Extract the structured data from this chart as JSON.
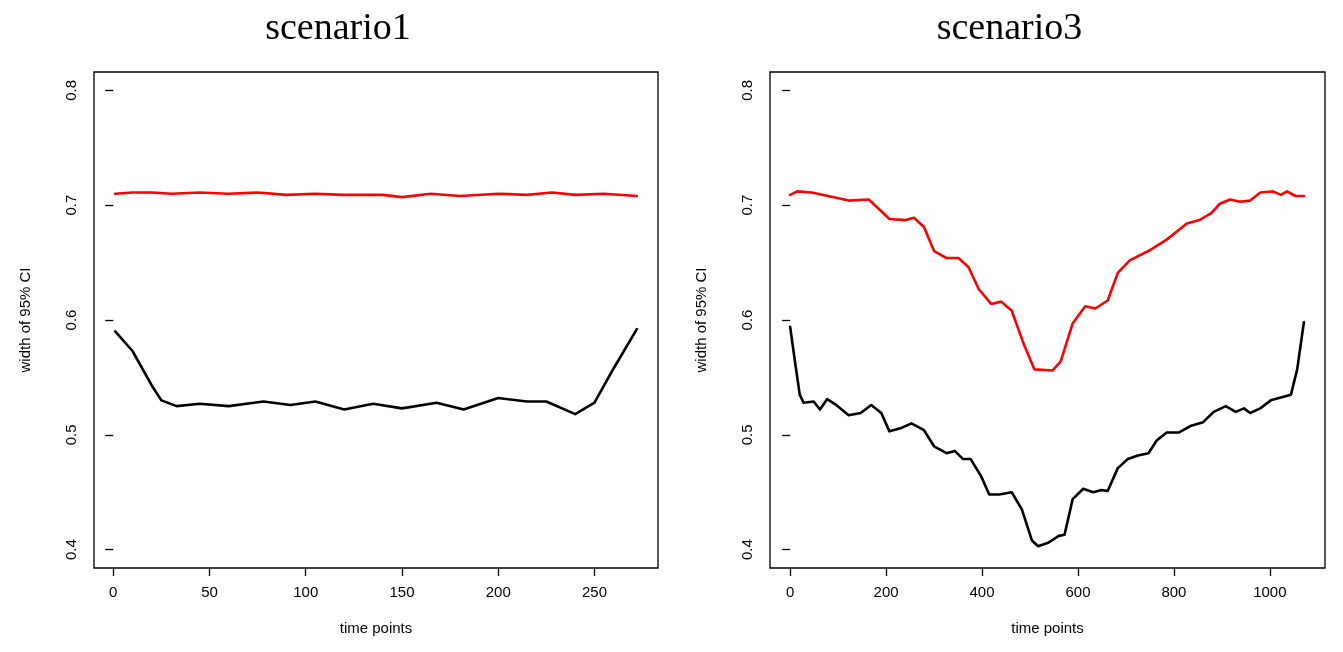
{
  "chart_data": [
    {
      "type": "line",
      "title": "scenario1",
      "xlabel": "time points",
      "ylabel": "width of 95% CI",
      "xlim": [
        -10,
        283
      ],
      "ylim": [
        0.384,
        0.816
      ],
      "xticks": [
        0,
        50,
        100,
        150,
        200,
        250
      ],
      "yticks": [
        0.4,
        0.5,
        0.6,
        0.7,
        0.8
      ],
      "grid": false,
      "marker": "none",
      "line_style": "solid",
      "series": [
        {
          "color": "#ff0000",
          "x": [
            1,
            10,
            20,
            30,
            45,
            60,
            75,
            90,
            105,
            120,
            140,
            150,
            165,
            180,
            200,
            215,
            228,
            240,
            255,
            272
          ],
          "values": [
            0.71,
            0.711,
            0.711,
            0.71,
            0.711,
            0.71,
            0.711,
            0.709,
            0.71,
            0.709,
            0.709,
            0.707,
            0.71,
            0.708,
            0.71,
            0.709,
            0.711,
            0.709,
            0.71,
            0.708
          ]
        },
        {
          "color": "#000000",
          "x": [
            1,
            10,
            20,
            25,
            33,
            45,
            60,
            78,
            92,
            105,
            120,
            135,
            150,
            168,
            182,
            200,
            215,
            225,
            240,
            250,
            260,
            272
          ],
          "values": [
            0.59,
            0.573,
            0.543,
            0.53,
            0.525,
            0.527,
            0.525,
            0.529,
            0.526,
            0.529,
            0.522,
            0.527,
            0.523,
            0.528,
            0.522,
            0.532,
            0.529,
            0.529,
            0.518,
            0.528,
            0.558,
            0.592
          ]
        }
      ]
    },
    {
      "type": "line",
      "title": "scenario3",
      "xlabel": "time points",
      "ylabel": "width of 95% CI",
      "xlim": [
        -42,
        1115
      ],
      "ylim": [
        0.384,
        0.816
      ],
      "xticks": [
        0,
        200,
        400,
        600,
        800,
        1000
      ],
      "yticks": [
        0.4,
        0.5,
        0.6,
        0.7,
        0.8
      ],
      "grid": false,
      "marker": "none",
      "line_style": "solid",
      "series": [
        {
          "color": "#ff0000",
          "x": [
            0,
            15,
            45,
            79,
            122,
            164,
            207,
            241,
            258,
            279,
            300,
            326,
            351,
            372,
            393,
            419,
            440,
            462,
            487,
            509,
            547,
            564,
            589,
            615,
            636,
            662,
            683,
            708,
            751,
            785,
            827,
            853,
            878,
            895,
            917,
            938,
            959,
            980,
            1006,
            1023,
            1036,
            1053,
            1071
          ],
          "values": [
            0.709,
            0.712,
            0.711,
            0.708,
            0.704,
            0.705,
            0.688,
            0.687,
            0.689,
            0.681,
            0.66,
            0.654,
            0.654,
            0.646,
            0.627,
            0.614,
            0.616,
            0.608,
            0.579,
            0.557,
            0.556,
            0.564,
            0.597,
            0.612,
            0.61,
            0.617,
            0.641,
            0.652,
            0.661,
            0.67,
            0.684,
            0.687,
            0.693,
            0.701,
            0.705,
            0.703,
            0.704,
            0.711,
            0.712,
            0.709,
            0.712,
            0.708,
            0.708
          ]
        },
        {
          "color": "#000000",
          "x": [
            0,
            11,
            20,
            28,
            49,
            62,
            77,
            96,
            122,
            147,
            169,
            190,
            207,
            232,
            253,
            279,
            300,
            326,
            343,
            360,
            376,
            398,
            415,
            436,
            462,
            483,
            504,
            517,
            538,
            560,
            572,
            589,
            611,
            632,
            649,
            662,
            683,
            704,
            725,
            747,
            764,
            785,
            810,
            836,
            861,
            883,
            908,
            929,
            946,
            959,
            980,
            1002,
            1027,
            1044,
            1057,
            1071
          ],
          "values": [
            0.594,
            0.561,
            0.535,
            0.528,
            0.529,
            0.522,
            0.531,
            0.526,
            0.517,
            0.519,
            0.526,
            0.519,
            0.503,
            0.506,
            0.51,
            0.504,
            0.49,
            0.484,
            0.486,
            0.479,
            0.479,
            0.464,
            0.448,
            0.448,
            0.45,
            0.435,
            0.408,
            0.403,
            0.406,
            0.412,
            0.413,
            0.444,
            0.453,
            0.45,
            0.452,
            0.451,
            0.471,
            0.479,
            0.482,
            0.484,
            0.495,
            0.502,
            0.502,
            0.508,
            0.511,
            0.52,
            0.525,
            0.52,
            0.523,
            0.519,
            0.523,
            0.53,
            0.533,
            0.535,
            0.557,
            0.598
          ]
        }
      ]
    }
  ]
}
